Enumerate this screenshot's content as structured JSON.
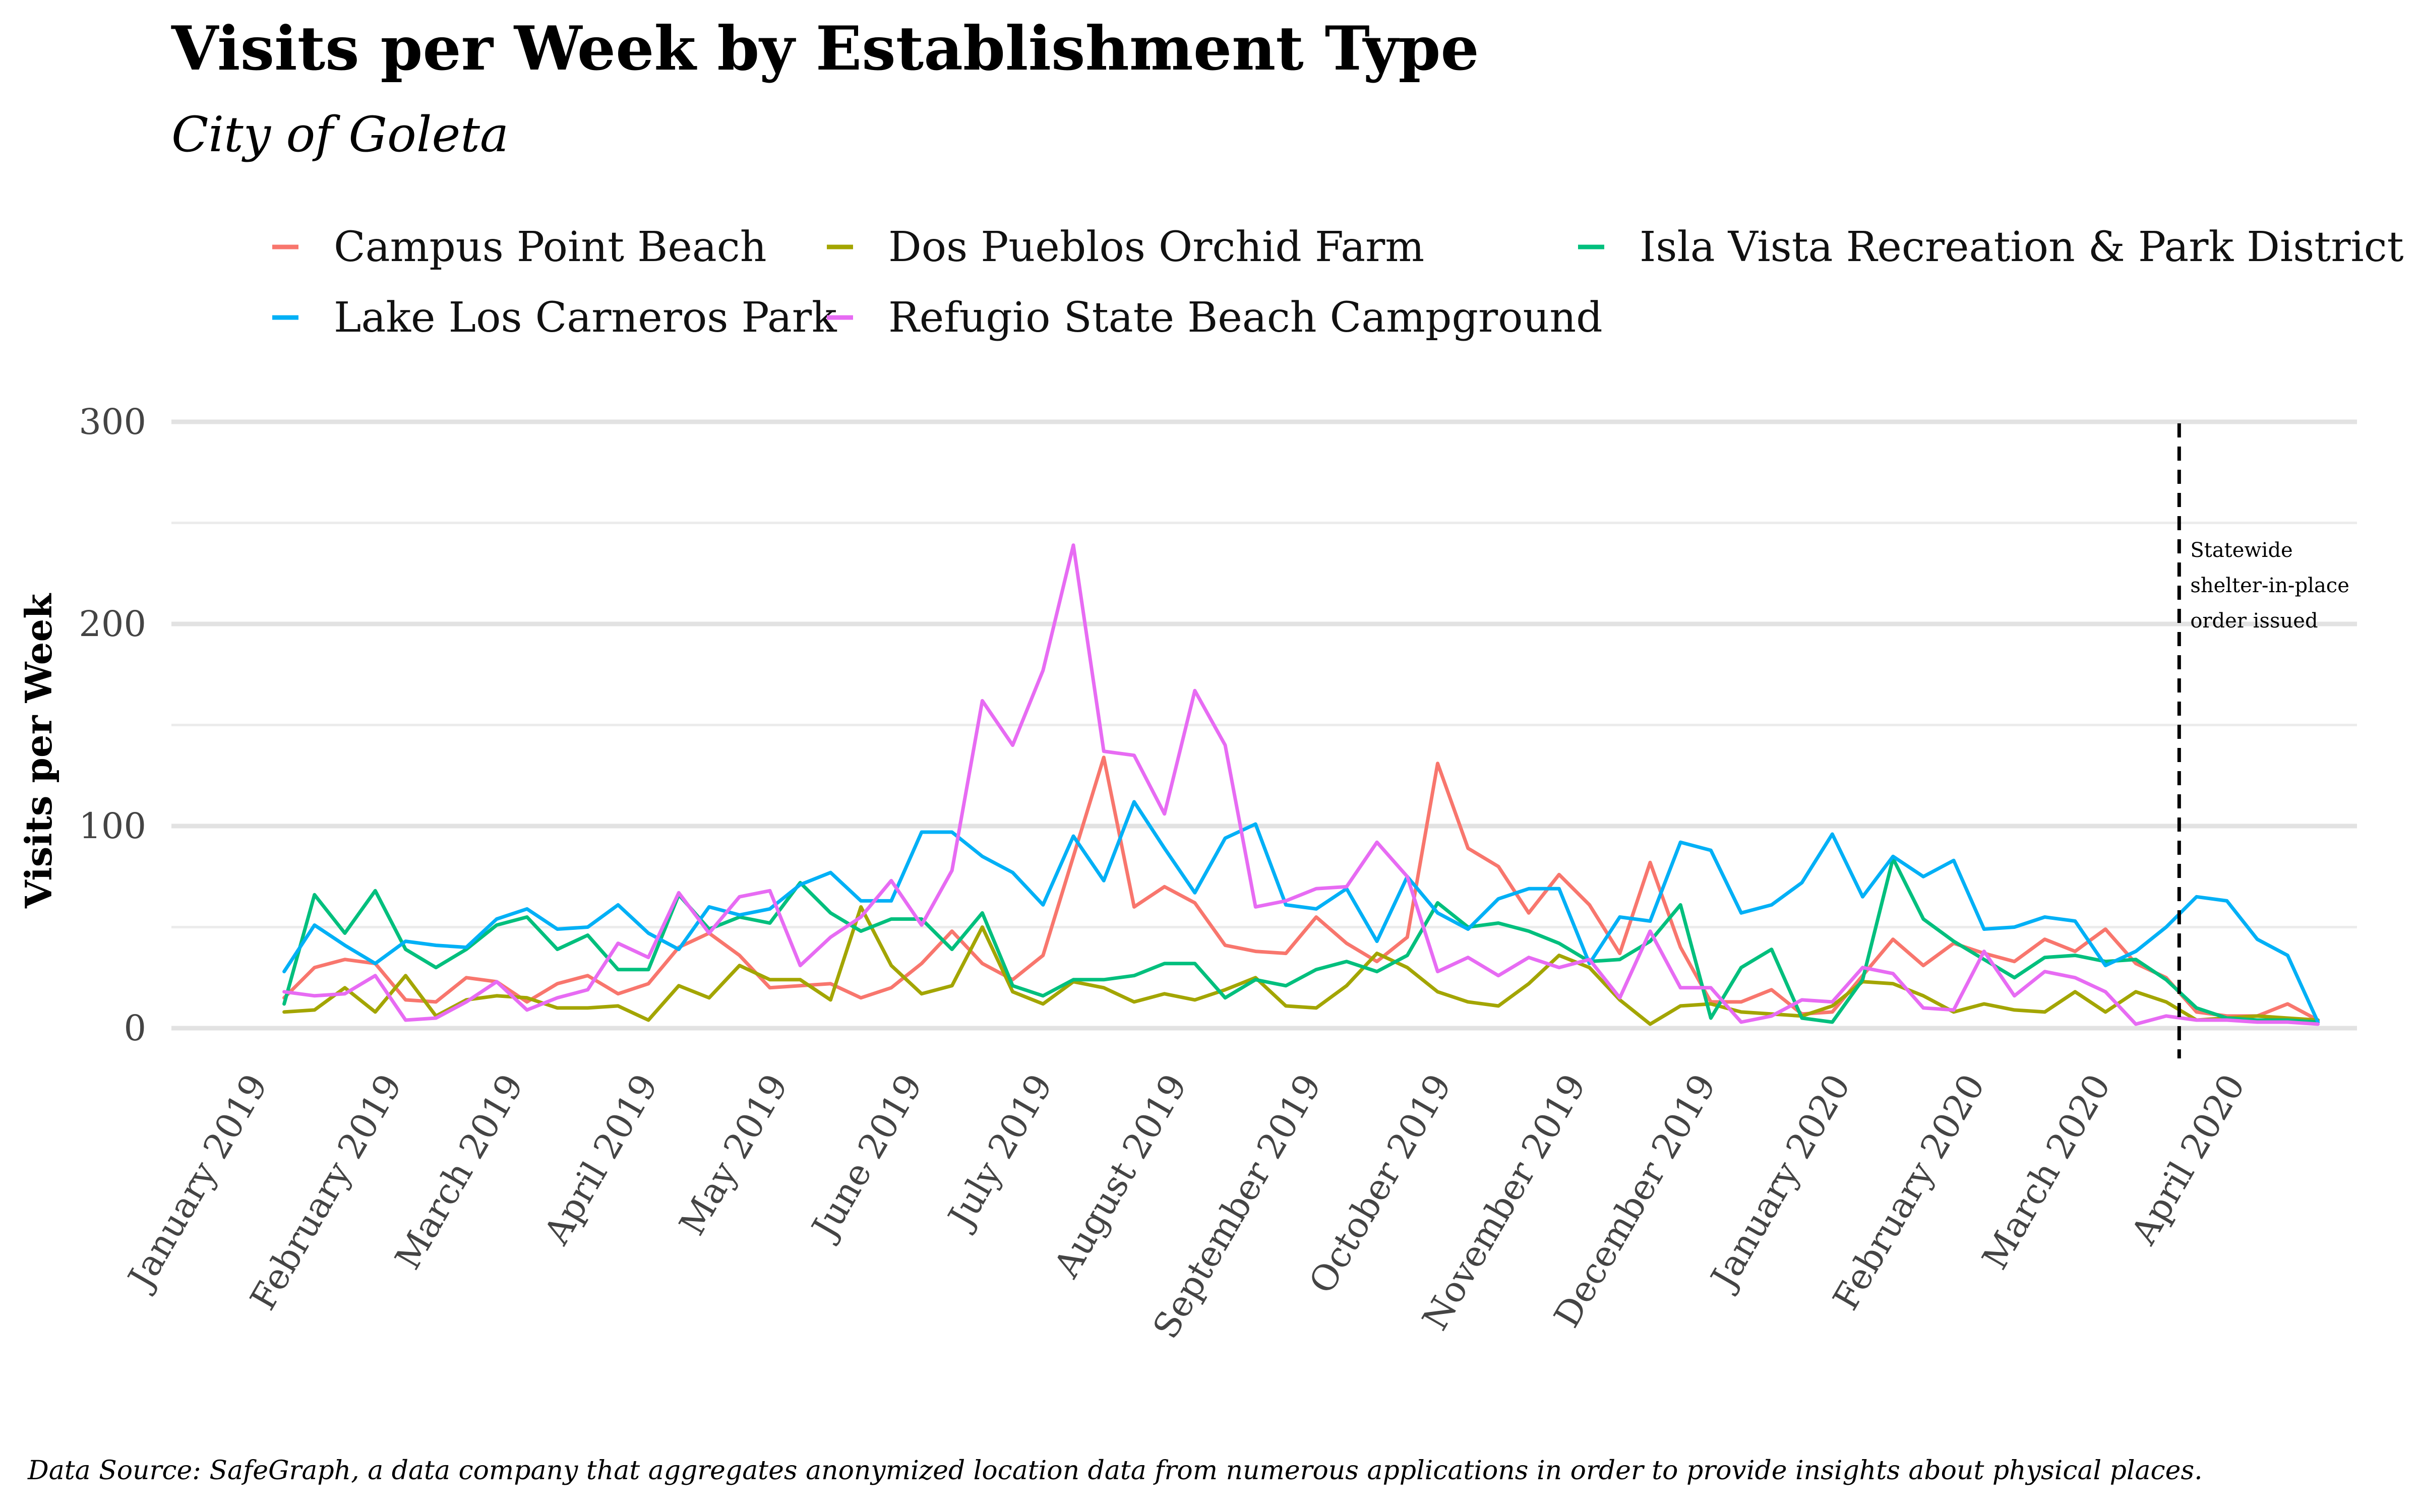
{
  "chart_data": {
    "type": "line",
    "title": "Visits per Week by Establishment Type",
    "subtitle": "City of Goleta",
    "xlabel": "",
    "ylabel": "Visits per Week",
    "ylim": [
      0,
      300
    ],
    "y_ticks": [
      0,
      100,
      200,
      300
    ],
    "x_ticks": [
      "January 2019",
      "February 2019",
      "March 2019",
      "April 2019",
      "May 2019",
      "June 2019",
      "July 2019",
      "August 2019",
      "September 2019",
      "October 2019",
      "November 2019",
      "December 2019",
      "January 2020",
      "February 2020",
      "March 2020",
      "April 2020"
    ],
    "legend_position": "top",
    "grid": true,
    "x_start_week": "2019-01-07",
    "series": [
      {
        "name": "Campus Point Beach",
        "color": "#F8766D",
        "values": [
          15,
          30,
          34,
          32,
          14,
          13,
          25,
          23,
          13,
          22,
          26,
          17,
          22,
          40,
          47,
          36,
          20,
          21,
          22,
          15,
          20,
          32,
          48,
          32,
          24,
          36,
          85,
          134,
          60,
          70,
          62,
          41,
          38,
          37,
          55,
          42,
          33,
          45,
          131,
          89,
          80,
          57,
          76,
          61,
          37,
          82,
          40,
          13,
          13,
          19,
          7,
          8,
          26,
          44,
          31,
          42,
          37,
          33,
          44,
          38,
          49,
          32,
          25,
          8,
          6,
          6,
          12,
          4
        ]
      },
      {
        "name": "Dos Pueblos Orchid Farm",
        "color": "#A3A500",
        "values": [
          8,
          9,
          20,
          8,
          26,
          6,
          14,
          16,
          15,
          10,
          10,
          11,
          4,
          21,
          15,
          31,
          24,
          24,
          14,
          60,
          31,
          17,
          21,
          50,
          18,
          12,
          23,
          20,
          13,
          17,
          14,
          19,
          25,
          11,
          10,
          21,
          37,
          30,
          18,
          13,
          11,
          22,
          36,
          30,
          14,
          2,
          11,
          12,
          8,
          7,
          6,
          11,
          23,
          22,
          16,
          8,
          12,
          9,
          8,
          18,
          8,
          18,
          13,
          4,
          5,
          6,
          5,
          4
        ]
      },
      {
        "name": "Isla Vista Recreation & Park District",
        "color": "#00BF7D",
        "values": [
          12,
          66,
          47,
          68,
          39,
          30,
          39,
          51,
          55,
          39,
          46,
          29,
          29,
          66,
          49,
          55,
          52,
          72,
          57,
          48,
          54,
          54,
          39,
          57,
          21,
          16,
          24,
          24,
          26,
          32,
          32,
          15,
          24,
          21,
          29,
          33,
          28,
          36,
          62,
          50,
          52,
          48,
          42,
          33,
          34,
          43,
          61,
          5,
          30,
          39,
          5,
          3,
          24,
          84,
          54,
          43,
          34,
          25,
          35,
          36,
          33,
          34,
          24,
          10,
          5,
          4,
          4,
          3
        ]
      },
      {
        "name": "Lake Los Carneros Park",
        "color": "#00B0F6",
        "values": [
          28,
          51,
          41,
          32,
          43,
          41,
          40,
          54,
          59,
          49,
          50,
          61,
          47,
          39,
          60,
          56,
          59,
          71,
          77,
          63,
          63,
          97,
          97,
          85,
          77,
          61,
          95,
          73,
          112,
          89,
          67,
          94,
          101,
          61,
          59,
          69,
          43,
          75,
          57,
          49,
          64,
          69,
          69,
          32,
          55,
          53,
          92,
          88,
          57,
          61,
          72,
          96,
          65,
          85,
          75,
          83,
          49,
          50,
          55,
          53,
          31,
          38,
          50,
          65,
          63,
          44,
          36,
          3
        ]
      },
      {
        "name": "Refugio State Beach Campground",
        "color": "#E76BF3",
        "values": [
          18,
          16,
          17,
          26,
          4,
          5,
          13,
          23,
          9,
          15,
          19,
          42,
          35,
          67,
          47,
          65,
          68,
          31,
          45,
          55,
          73,
          51,
          78,
          162,
          140,
          177,
          239,
          137,
          135,
          106,
          167,
          140,
          60,
          63,
          69,
          70,
          92,
          75,
          28,
          35,
          26,
          35,
          30,
          34,
          15,
          48,
          20,
          20,
          3,
          6,
          14,
          13,
          30,
          27,
          10,
          9,
          38,
          16,
          28,
          25,
          18,
          2,
          6,
          4,
          4,
          3,
          3,
          2
        ]
      }
    ],
    "annotations": [
      {
        "type": "vline",
        "x": "2020-03-19",
        "label_lines": [
          "Statewide",
          " shelter-in-place",
          "order issued"
        ]
      }
    ],
    "caption": "Data Source: SafeGraph, a data company that aggregates anonymized location data from numerous applications in order to provide insights about physical places."
  }
}
